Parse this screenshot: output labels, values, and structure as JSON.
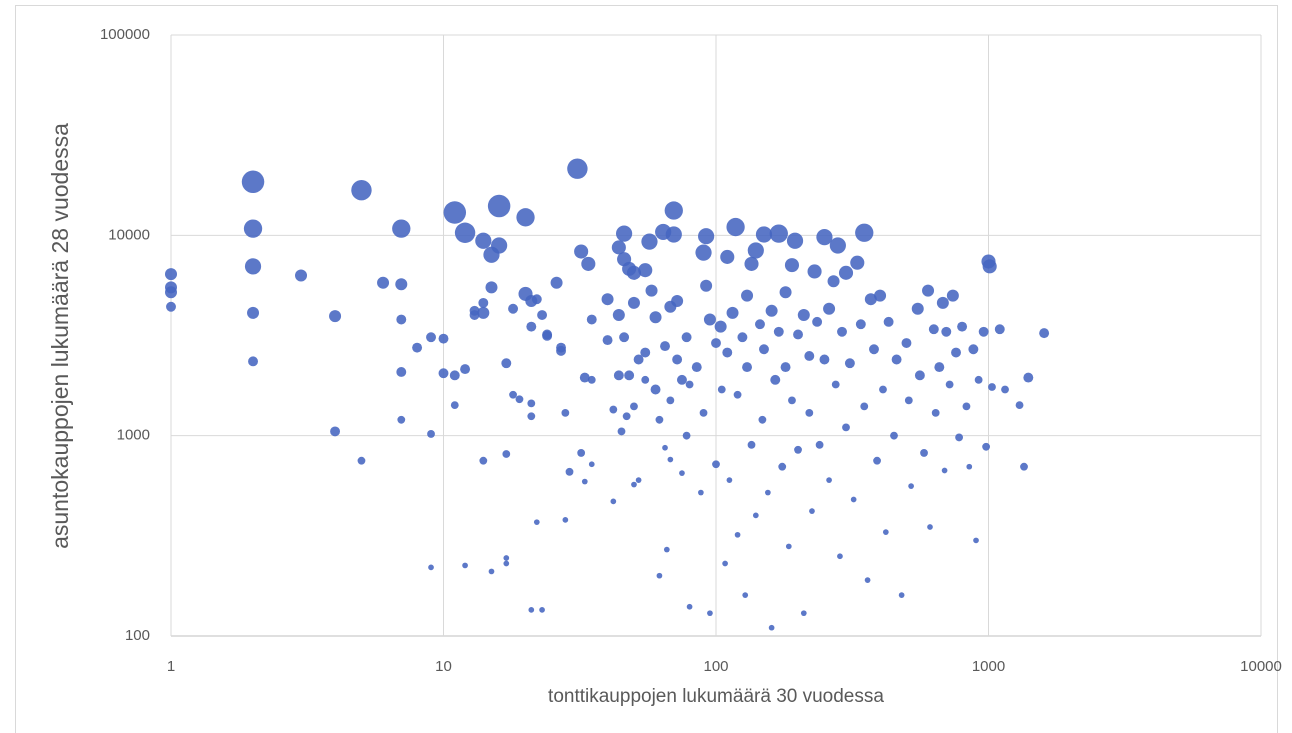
{
  "chart_data": {
    "type": "scatter",
    "xlabel": "tonttikauppojen lukumäärä 30 vuodessa",
    "ylabel": "asuntokauppojen lukumäärä 28 vuodessa",
    "xscale": "log",
    "yscale": "log",
    "xlim": [
      1,
      10000
    ],
    "ylim": [
      100,
      100000
    ],
    "xticks": [
      1,
      10,
      100,
      1000,
      10000
    ],
    "yticks": [
      100,
      1000,
      10000,
      100000
    ],
    "grid": true,
    "color": "#4565c0",
    "x": [
      1,
      1,
      1,
      1,
      2,
      2,
      2,
      2,
      2,
      3,
      4,
      4,
      5,
      5,
      6,
      7,
      7,
      7,
      7,
      7,
      8,
      9,
      9,
      9,
      10,
      10,
      11,
      11,
      11,
      12,
      12,
      12,
      13,
      13,
      14,
      14,
      14,
      14,
      15,
      15,
      15,
      16,
      16,
      17,
      17,
      17,
      17,
      18,
      18,
      19,
      20,
      20,
      21,
      21,
      21,
      21,
      21,
      22,
      22,
      23,
      23,
      24,
      24,
      26,
      27,
      27,
      28,
      28,
      29,
      31,
      32,
      32,
      33,
      33,
      34,
      35,
      35,
      35,
      40,
      40,
      42,
      42,
      44,
      44,
      44,
      45,
      46,
      46,
      46,
      47,
      48,
      48,
      50,
      50,
      50,
      50,
      52,
      52,
      55,
      55,
      55,
      57,
      58,
      60,
      60,
      62,
      62,
      64,
      65,
      65,
      66,
      68,
      68,
      68,
      70,
      70,
      72,
      72,
      75,
      75,
      78,
      78,
      80,
      80,
      85,
      88,
      90,
      90,
      92,
      92,
      95,
      95,
      100,
      100,
      104,
      105,
      108,
      110,
      110,
      112,
      115,
      118,
      120,
      120,
      125,
      128,
      130,
      130,
      135,
      135,
      140,
      140,
      145,
      148,
      150,
      150,
      155,
      160,
      160,
      165,
      170,
      170,
      175,
      180,
      180,
      185,
      190,
      190,
      195,
      200,
      200,
      210,
      210,
      220,
      220,
      225,
      230,
      235,
      240,
      250,
      250,
      260,
      260,
      270,
      275,
      280,
      285,
      290,
      300,
      300,
      310,
      320,
      330,
      340,
      350,
      350,
      360,
      370,
      380,
      390,
      400,
      410,
      420,
      430,
      450,
      460,
      480,
      500,
      510,
      520,
      550,
      560,
      580,
      600,
      610,
      630,
      640,
      660,
      680,
      690,
      700,
      720,
      740,
      760,
      780,
      800,
      830,
      850,
      880,
      900,
      920,
      960,
      980,
      1000,
      1010,
      1030,
      1100,
      1150,
      1300,
      1350,
      1400,
      1600
    ],
    "values": [
      6400,
      5500,
      5200,
      4400,
      18500,
      10800,
      7000,
      4100,
      2350,
      6300,
      3950,
      1050,
      16800,
      750,
      5800,
      10800,
      5700,
      3800,
      2080,
      1200,
      2750,
      3100,
      1020,
      220,
      3050,
      2050,
      13000,
      2000,
      1420,
      10300,
      2150,
      225,
      4200,
      4000,
      9400,
      4600,
      4100,
      750,
      8000,
      5500,
      210,
      14000,
      8900,
      2300,
      810,
      230,
      245,
      4300,
      1600,
      1520,
      12300,
      5100,
      4700,
      3500,
      1450,
      1250,
      135,
      4800,
      370,
      4000,
      135,
      3200,
      3150,
      5800,
      2750,
      2650,
      1300,
      380,
      660,
      21500,
      8300,
      820,
      1950,
      590,
      7200,
      3800,
      1900,
      720,
      4800,
      3000,
      1350,
      470,
      8700,
      4000,
      2000,
      1050,
      10200,
      7600,
      3100,
      1250,
      6800,
      2000,
      6500,
      4600,
      1400,
      570,
      2400,
      600,
      6700,
      2600,
      1900,
      9300,
      5300,
      3900,
      1700,
      1200,
      200,
      10400,
      2800,
      870,
      270,
      4400,
      1500,
      760,
      13300,
      10100,
      4700,
      2400,
      1900,
      650,
      3100,
      1000,
      1800,
      140,
      2200,
      520,
      8200,
      1300,
      9900,
      5600,
      3800,
      130,
      2900,
      720,
      3500,
      1700,
      230,
      7800,
      2600,
      600,
      4100,
      11000,
      1600,
      320,
      3100,
      160,
      5000,
      2200,
      7200,
      900,
      8400,
      400,
      3600,
      1200,
      10100,
      2700,
      520,
      4200,
      110,
      1900,
      10200,
      3300,
      700,
      5200,
      2200,
      280,
      7100,
      1500,
      9400,
      3200,
      850,
      4000,
      130,
      2500,
      1300,
      420,
      6600,
      3700,
      900,
      9800,
      2400,
      4300,
      600,
      5900,
      1800,
      8900,
      250,
      3300,
      6500,
      1100,
      2300,
      480,
      7300,
      3600,
      10300,
      1400,
      190,
      4800,
      2700,
      750,
      5000,
      1700,
      330,
      3700,
      1000,
      2400,
      160,
      2900,
      1500,
      560,
      4300,
      2000,
      820,
      5300,
      350,
      3400,
      1300,
      2200,
      4600,
      670,
      3300,
      1800,
      5000,
      2600,
      980,
      3500,
      1400,
      700,
      2700,
      300,
      1900,
      3300,
      880,
      7400,
      7000,
      1750,
      3400,
      1700,
      1420,
      700,
      1950,
      3250
    ],
    "sizes": [
      4,
      4,
      4,
      3,
      9,
      7,
      6,
      4,
      3,
      4,
      4,
      3,
      8,
      2,
      4,
      7,
      4,
      3,
      3,
      2,
      3,
      3,
      2,
      1,
      3,
      3,
      9,
      3,
      2,
      8,
      3,
      1,
      3,
      3,
      6,
      3,
      4,
      2,
      6,
      4,
      1,
      9,
      6,
      3,
      2,
      1,
      1,
      3,
      2,
      2,
      7,
      5,
      4,
      3,
      2,
      2,
      1,
      3,
      1,
      3,
      1,
      3,
      3,
      4,
      3,
      3,
      2,
      1,
      2,
      8,
      5,
      2,
      3,
      1,
      5,
      3,
      2,
      1,
      4,
      3,
      2,
      1,
      5,
      4,
      3,
      2,
      6,
      5,
      3,
      2,
      5,
      3,
      5,
      4,
      2,
      1,
      3,
      1,
      5,
      3,
      2,
      6,
      4,
      4,
      3,
      2,
      1,
      6,
      3,
      1,
      1,
      4,
      2,
      1,
      7,
      6,
      4,
      3,
      3,
      1,
      3,
      2,
      2,
      1,
      3,
      1,
      6,
      2,
      6,
      4,
      4,
      1,
      3,
      2,
      4,
      2,
      1,
      5,
      3,
      1,
      4,
      7,
      2,
      1,
      3,
      1,
      4,
      3,
      5,
      2,
      6,
      1,
      3,
      2,
      6,
      3,
      1,
      4,
      1,
      3,
      7,
      3,
      2,
      4,
      3,
      1,
      5,
      2,
      6,
      3,
      2,
      4,
      1,
      3,
      2,
      1,
      5,
      3,
      2,
      6,
      3,
      4,
      1,
      4,
      2,
      6,
      1,
      3,
      5,
      2,
      3,
      1,
      5,
      3,
      7,
      2,
      1,
      4,
      3,
      2,
      4,
      2,
      1,
      3,
      2,
      3,
      1,
      3,
      2,
      1,
      4,
      3,
      2,
      4,
      1,
      3,
      2,
      3,
      4,
      1,
      3,
      2,
      4,
      3,
      2,
      3,
      2,
      1,
      3,
      1,
      2,
      3,
      2,
      5,
      5,
      2,
      3,
      2,
      2,
      2,
      3,
      3
    ]
  }
}
